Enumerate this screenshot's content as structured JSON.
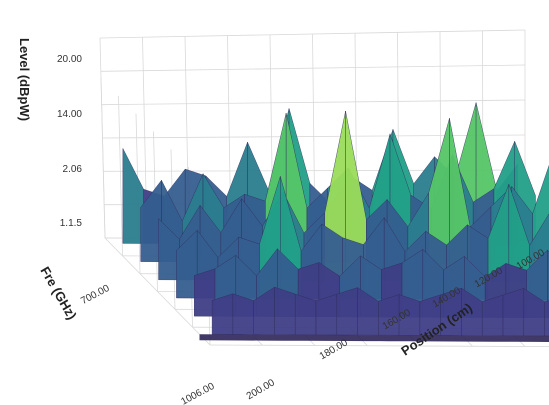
{
  "chart_data": {
    "type": "surface",
    "title": "",
    "zlabel": "Level (dBpW)",
    "xlabel": "Fre (GHz)",
    "ylabel": "Position (cm)",
    "z_ticks": [
      "20.00",
      "14.00",
      "2.06",
      "1.1.5"
    ],
    "z_range": [
      -4,
      24
    ],
    "freq_ticks": [
      "1006.00",
      "700.00"
    ],
    "freq_range": [
      1006,
      0
    ],
    "position_ticks": [
      "200.00",
      "180.00",
      "160.00",
      "140.00",
      "120.00",
      "100.00"
    ],
    "position_range": [
      200,
      100
    ],
    "colormap": [
      "#3b1f63",
      "#3f3e86",
      "#355e8f",
      "#2a7d8e",
      "#22a088",
      "#55c567",
      "#9bdc5b"
    ],
    "grid": true,
    "surface_rows": [
      [
        10,
        4,
        3,
        7,
        6,
        3,
        11,
        4,
        16,
        5,
        2,
        6,
        4,
        13,
        5,
        9,
        6,
        17,
        4,
        8
      ],
      [
        4,
        8,
        2,
        9,
        4,
        6,
        5,
        18,
        4,
        7,
        10,
        4,
        15,
        6,
        4,
        12,
        5,
        7,
        14,
        6
      ],
      [
        5,
        2,
        7,
        3,
        8,
        4,
        9,
        3,
        6,
        21,
        5,
        8,
        4,
        9,
        20,
        4,
        7,
        10,
        6,
        15
      ],
      [
        3,
        6,
        2,
        5,
        4,
        14,
        3,
        7,
        5,
        4,
        8,
        3,
        6,
        4,
        7,
        5,
        13,
        4,
        9,
        5
      ],
      [
        2,
        3,
        5,
        2,
        6,
        3,
        4,
        2,
        5,
        3,
        4,
        6,
        3,
        5,
        2,
        4,
        3,
        6,
        2,
        4
      ],
      [
        1,
        2,
        1,
        3,
        2,
        1,
        2,
        3,
        1,
        2,
        1,
        2,
        3,
        1,
        2,
        3,
        1,
        2,
        1,
        2
      ]
    ]
  }
}
